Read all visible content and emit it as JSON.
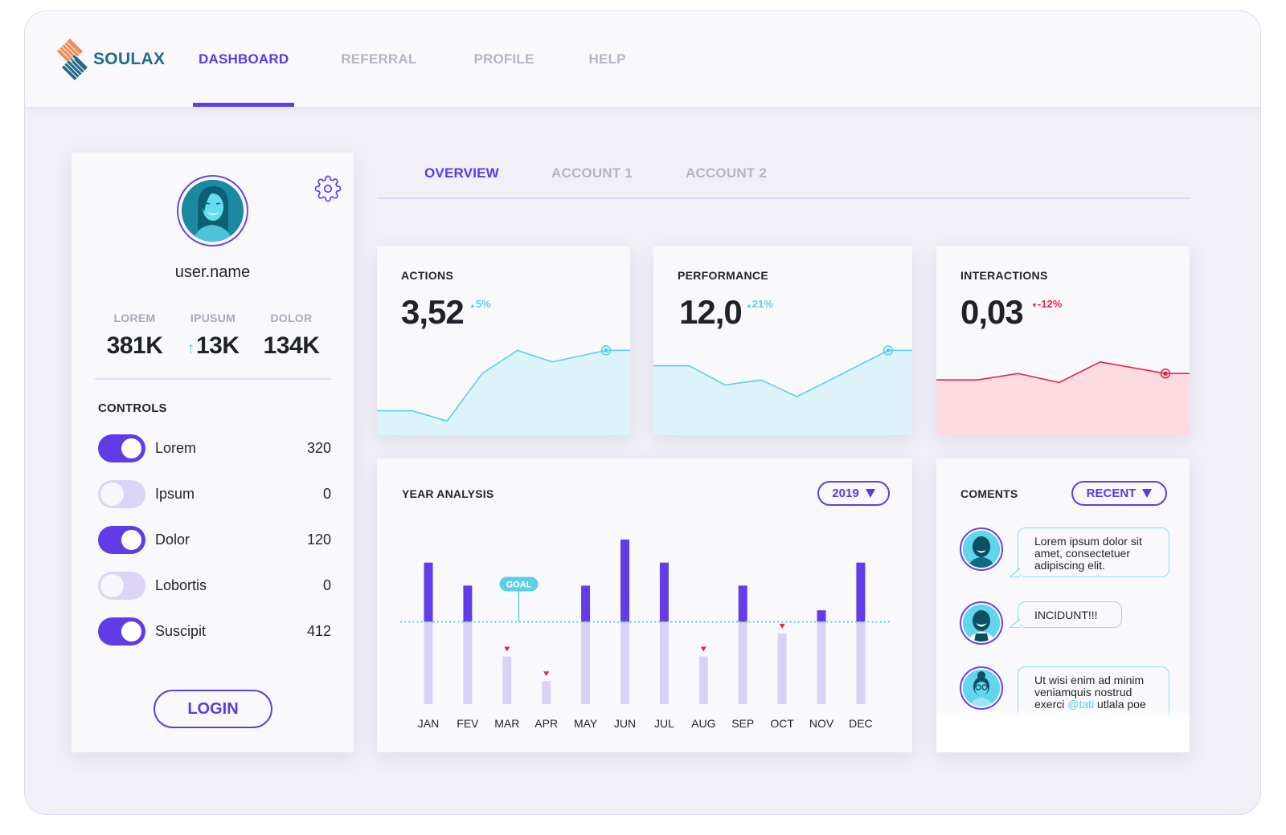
{
  "brand": {
    "name": "SOULAX",
    "colors": {
      "accent": "#5c39e6",
      "teal": "#5ccfe6",
      "red": "#e8234f",
      "logo_orange": "#f28a55",
      "logo_blue": "#236a8c"
    }
  },
  "nav": {
    "items": [
      {
        "label": "DASHBOARD",
        "active": true
      },
      {
        "label": "REFERRAL",
        "active": false
      },
      {
        "label": "PROFILE",
        "active": false
      },
      {
        "label": "HELP",
        "active": false
      }
    ]
  },
  "profile": {
    "username": "user.name",
    "settings_icon": "gear-icon",
    "stats": [
      {
        "label": "LOREM",
        "value": "381K",
        "trend": null
      },
      {
        "label": "IPUSUM",
        "value": "13K",
        "trend": "up-arrow-icon"
      },
      {
        "label": "DOLOR",
        "value": "134K",
        "trend": null
      }
    ],
    "controls_title": "CONTROLS",
    "controls": [
      {
        "label": "Lorem",
        "value": "320",
        "on": true
      },
      {
        "label": "Ipsum",
        "value": "0",
        "on": false
      },
      {
        "label": "Dolor",
        "value": "120",
        "on": true
      },
      {
        "label": "Lobortis",
        "value": "0",
        "on": false
      },
      {
        "label": "Suscipit",
        "value": "412",
        "on": true
      }
    ],
    "login_label": "LOGIN"
  },
  "tabs": [
    {
      "label": "OVERVIEW",
      "active": true
    },
    {
      "label": "ACCOUNT 1",
      "active": false
    },
    {
      "label": "ACCOUNT 2",
      "active": false
    }
  ],
  "metrics": [
    {
      "title": "ACTIONS",
      "value": "3,52",
      "delta": "5%",
      "direction": "up",
      "color": "#5ccfe6",
      "fill": "#dcf4f9",
      "series": [
        19,
        19,
        11,
        48,
        66,
        57,
        66,
        66
      ]
    },
    {
      "title": "PERFORMANCE",
      "value": "12,0",
      "delta": "21%",
      "direction": "up",
      "color": "#5ccfe6",
      "fill": "#dcf4f9",
      "series": [
        54,
        54,
        39,
        43,
        30,
        44,
        66,
        66
      ]
    },
    {
      "title": "INTERACTIONS",
      "value": "0,03",
      "delta": "-12%",
      "direction": "down",
      "color": "#e8234f",
      "fill": "#fcdbe1",
      "series": [
        43,
        43,
        48,
        41,
        57,
        48,
        48
      ]
    }
  ],
  "year_analysis": {
    "title": "YEAR ANALYSIS",
    "year_select": "2019",
    "goal_label": "GOAL"
  },
  "chart_data": {
    "type": "bar",
    "title": "YEAR ANALYSIS",
    "categories": [
      "JAN",
      "FEV",
      "MAR",
      "APR",
      "MAY",
      "JUN",
      "JUL",
      "AUG",
      "SEP",
      "OCT",
      "NOV",
      "DEC"
    ],
    "values": [
      86,
      72,
      29,
      14,
      72,
      100,
      86,
      29,
      72,
      43,
      57,
      86
    ],
    "goal": 50,
    "below_goal_marker": "red-down-triangle",
    "ylim": [
      0,
      100
    ],
    "xlabel": "",
    "ylabel": "",
    "grid": false
  },
  "comments": {
    "title": "COMENTS",
    "sort_select": "RECENT",
    "items": [
      {
        "avatar": "man-avatar-icon",
        "text": "Lorem ipsum dolor sit amet, consectetuer adipiscing elit."
      },
      {
        "avatar": "bearded-man-avatar-icon",
        "text": "INCIDUNT!!!"
      },
      {
        "avatar": "woman-glasses-avatar-icon",
        "text_before": "Ut wisi enim ad minim veniamquis nostrud exerci ",
        "mention": "@tati",
        "text_after": " utlala poe"
      }
    ]
  }
}
